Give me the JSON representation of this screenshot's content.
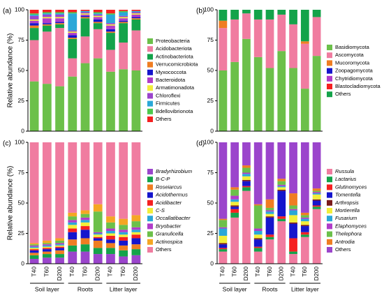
{
  "figure": {
    "ylabel": "Relative abundance (%)",
    "x_labels": [
      "T40",
      "T60",
      "D200",
      "T40",
      "T60",
      "D200",
      "T40",
      "T60",
      "D200"
    ],
    "groups": [
      "Soil layer",
      "Roots",
      "Litter layer"
    ],
    "yticks": [
      "0",
      "25",
      "50",
      "75",
      "100"
    ]
  },
  "chart_data": [
    {
      "panel": "(a)",
      "type": "bar",
      "stacked": true,
      "ylim": [
        0,
        100
      ],
      "ylabel": "Relative abundance (%)",
      "categories": [
        "T40",
        "T60",
        "D200",
        "T40",
        "T60",
        "D200",
        "T40",
        "T60",
        "D200"
      ],
      "groups": [
        {
          "name": "Soil layer",
          "categories": [
            0,
            1,
            2
          ]
        },
        {
          "name": "Roots",
          "categories": [
            3,
            4,
            5
          ]
        },
        {
          "name": "Litter layer",
          "categories": [
            6,
            7,
            8
          ]
        }
      ],
      "legend_position": "right",
      "series": [
        {
          "name": "Proteobacteria",
          "color": "#6cc04a",
          "values": [
            41,
            39,
            37,
            45,
            56,
            60,
            49,
            51,
            50
          ]
        },
        {
          "name": "Acidobacteriota",
          "color": "#f07ca0",
          "values": [
            34,
            43,
            48,
            15,
            22,
            24,
            18,
            22,
            33
          ]
        },
        {
          "name": "Actinobacteriota",
          "color": "#14a34a",
          "values": [
            10,
            5,
            3,
            16,
            15,
            5,
            14,
            16,
            9
          ]
        },
        {
          "name": "Verrucomicrobiota",
          "color": "#ef7d22",
          "values": [
            2,
            1,
            1,
            1,
            1,
            1,
            1,
            1,
            1
          ]
        },
        {
          "name": "Myxococcota",
          "color": "#1515cc",
          "values": [
            2,
            1,
            1,
            2,
            1,
            2,
            2,
            1,
            1
          ]
        },
        {
          "name": "Bacteroidota",
          "color": "#b03cc9",
          "values": [
            2,
            4,
            3,
            2,
            1,
            2,
            3,
            2,
            2
          ]
        },
        {
          "name": "Armatimonadota",
          "color": "#f2ee3a",
          "values": [
            1,
            1,
            1,
            1,
            1,
            1,
            1,
            1,
            1
          ]
        },
        {
          "name": "Chloroflexi",
          "color": "#9b45cc",
          "values": [
            3,
            2,
            2,
            1,
            1,
            1,
            1,
            1,
            1
          ]
        },
        {
          "name": "Firmicutes",
          "color": "#2aa8d8",
          "values": [
            1,
            1,
            1,
            14,
            1,
            1,
            7,
            3,
            1
          ]
        },
        {
          "name": "Bdellovibrionota",
          "color": "#4cc94c",
          "values": [
            1,
            1,
            1,
            1,
            0,
            1,
            1,
            1,
            0
          ]
        },
        {
          "name": "Others",
          "color": "#f52020",
          "values": [
            3,
            2,
            2,
            2,
            1,
            2,
            3,
            1,
            1
          ]
        }
      ]
    },
    {
      "panel": "(b)",
      "type": "bar",
      "stacked": true,
      "ylim": [
        0,
        100
      ],
      "categories": [
        "T40",
        "T60",
        "D200",
        "T40",
        "T60",
        "D200",
        "T40",
        "T60",
        "D200"
      ],
      "groups": [
        {
          "name": "Soil layer",
          "categories": [
            0,
            1,
            2
          ]
        },
        {
          "name": "Roots",
          "categories": [
            3,
            4,
            5
          ]
        },
        {
          "name": "Litter layer",
          "categories": [
            6,
            7,
            8
          ]
        }
      ],
      "legend_position": "right",
      "series": [
        {
          "name": "Basidiomycota",
          "color": "#6cc04a",
          "values": [
            50,
            57,
            76,
            61,
            52,
            66,
            52,
            35,
            62
          ]
        },
        {
          "name": "Ascomycota",
          "color": "#f07ca0",
          "values": [
            35,
            35,
            21,
            31,
            40,
            30,
            36,
            37,
            32
          ]
        },
        {
          "name": "Mucoromycota",
          "color": "#ef7d22",
          "values": [
            6,
            0,
            0,
            0,
            0,
            0,
            0,
            2,
            0
          ]
        },
        {
          "name": "Zoopagomycota",
          "color": "#1515cc",
          "values": [
            0,
            0,
            0,
            0,
            0,
            0,
            0,
            0,
            0
          ]
        },
        {
          "name": "Chytridiomycota",
          "color": "#b03cc9",
          "values": [
            0,
            0,
            0,
            0,
            0,
            0,
            0,
            0,
            0
          ]
        },
        {
          "name": "Blastocladiomycota",
          "color": "#f52020",
          "values": [
            0,
            0,
            0,
            0,
            0,
            0,
            0,
            0,
            0
          ]
        },
        {
          "name": "Others",
          "color": "#14a34a",
          "values": [
            9,
            8,
            3,
            8,
            8,
            4,
            12,
            26,
            6
          ]
        }
      ]
    },
    {
      "panel": "(c)",
      "type": "bar",
      "stacked": true,
      "ylim": [
        0,
        100
      ],
      "ylabel": "Relative abundance (%)",
      "categories": [
        "T40",
        "T60",
        "D200",
        "T40",
        "T60",
        "D200",
        "T40",
        "T60",
        "D200"
      ],
      "groups": [
        {
          "name": "Soil layer",
          "categories": [
            0,
            1,
            2
          ]
        },
        {
          "name": "Roots",
          "categories": [
            3,
            4,
            5
          ]
        },
        {
          "name": "Litter layer",
          "categories": [
            6,
            7,
            8
          ]
        }
      ],
      "legend_position": "right",
      "series": [
        {
          "name": "Bradyrhizobium",
          "italic": true,
          "color": "#9b45cc",
          "values": [
            4,
            5,
            5,
            10,
            10,
            8,
            8,
            6,
            7
          ]
        },
        {
          "name": "B-C-P",
          "italic": true,
          "color": "#14a34a",
          "values": [
            3,
            3,
            3,
            5,
            6,
            5,
            5,
            5,
            5
          ]
        },
        {
          "name": "Roseiarcus",
          "italic": true,
          "color": "#ef7d22",
          "values": [
            2,
            2,
            3,
            5,
            5,
            6,
            4,
            4,
            4
          ]
        },
        {
          "name": "Acidothermus",
          "italic": true,
          "color": "#1515cc",
          "values": [
            2,
            2,
            2,
            6,
            7,
            2,
            3,
            4,
            5
          ]
        },
        {
          "name": "Acidibacter",
          "italic": true,
          "color": "#f52020",
          "values": [
            1,
            1,
            1,
            3,
            3,
            1,
            3,
            3,
            3
          ]
        },
        {
          "name": "C-S",
          "italic": true,
          "color": "#f2ee3a",
          "values": [
            1,
            1,
            1,
            3,
            3,
            2,
            2,
            2,
            2
          ]
        },
        {
          "name": "Occallatibacter",
          "italic": true,
          "color": "#2aa8d8",
          "values": [
            1,
            1,
            1,
            2,
            2,
            1,
            2,
            2,
            2
          ]
        },
        {
          "name": "Bryobacter",
          "italic": true,
          "color": "#b03cc9",
          "values": [
            1,
            1,
            1,
            2,
            2,
            1,
            2,
            2,
            2
          ]
        },
        {
          "name": "Granulicella",
          "italic": true,
          "color": "#6cc04a",
          "values": [
            1,
            1,
            2,
            3,
            3,
            17,
            5,
            4,
            5
          ]
        },
        {
          "name": "Actinospica",
          "italic": true,
          "color": "#f5a623",
          "values": [
            1,
            2,
            2,
            3,
            3,
            6,
            5,
            5,
            5
          ]
        },
        {
          "name": "Others",
          "color": "#f07ca0",
          "values": [
            83,
            81,
            79,
            58,
            56,
            51,
            61,
            63,
            60
          ]
        }
      ]
    },
    {
      "panel": "(d)",
      "type": "bar",
      "stacked": true,
      "ylim": [
        0,
        100
      ],
      "categories": [
        "T40",
        "T60",
        "D200",
        "T40",
        "T60",
        "D200",
        "T40",
        "T60",
        "D200"
      ],
      "groups": [
        {
          "name": "Soil layer",
          "categories": [
            0,
            1,
            2
          ]
        },
        {
          "name": "Roots",
          "categories": [
            3,
            4,
            5
          ]
        },
        {
          "name": "Litter layer",
          "categories": [
            6,
            7,
            8
          ]
        }
      ],
      "legend_position": "right",
      "series": [
        {
          "name": "Russula",
          "italic": true,
          "color": "#f07ca0",
          "values": [
            10,
            38,
            60,
            10,
            20,
            35,
            8,
            22,
            45
          ]
        },
        {
          "name": "Lactarius",
          "italic": true,
          "color": "#14a34a",
          "values": [
            2,
            4,
            3,
            3,
            2,
            2,
            2,
            2,
            2
          ]
        },
        {
          "name": "Glutinomyces",
          "italic": true,
          "color": "#f52020",
          "values": [
            1,
            3,
            1,
            1,
            2,
            2,
            11,
            2,
            1
          ]
        },
        {
          "name": "Tomentella",
          "italic": true,
          "color": "#1515cc",
          "values": [
            3,
            2,
            4,
            6,
            14,
            21,
            12,
            5,
            4
          ]
        },
        {
          "name": "Arthropsis",
          "italic": true,
          "color": "#7a1a1a",
          "values": [
            1,
            1,
            1,
            1,
            1,
            1,
            1,
            1,
            1
          ]
        },
        {
          "name": "Mortierella",
          "italic": true,
          "color": "#f2ee3a",
          "values": [
            6,
            3,
            3,
            3,
            2,
            2,
            6,
            3,
            4
          ]
        },
        {
          "name": "Fusarium",
          "italic": true,
          "color": "#2aa8d8",
          "values": [
            6,
            2,
            2,
            3,
            2,
            1,
            4,
            2,
            1
          ]
        },
        {
          "name": "Elaphomyces",
          "italic": true,
          "color": "#b03cc9",
          "values": [
            1,
            3,
            1,
            2,
            1,
            1,
            1,
            1,
            1
          ]
        },
        {
          "name": "Thelephora",
          "italic": true,
          "color": "#6cc04a",
          "values": [
            6,
            5,
            4,
            19,
            2,
            3,
            3,
            2,
            1
          ]
        },
        {
          "name": "Antrodia",
          "italic": true,
          "color": "#ef7d22",
          "values": [
            1,
            2,
            2,
            1,
            7,
            2,
            10,
            2,
            2
          ]
        },
        {
          "name": "Others",
          "color": "#9b45cc",
          "values": [
            63,
            37,
            19,
            51,
            47,
            30,
            42,
            58,
            38
          ]
        }
      ]
    }
  ]
}
